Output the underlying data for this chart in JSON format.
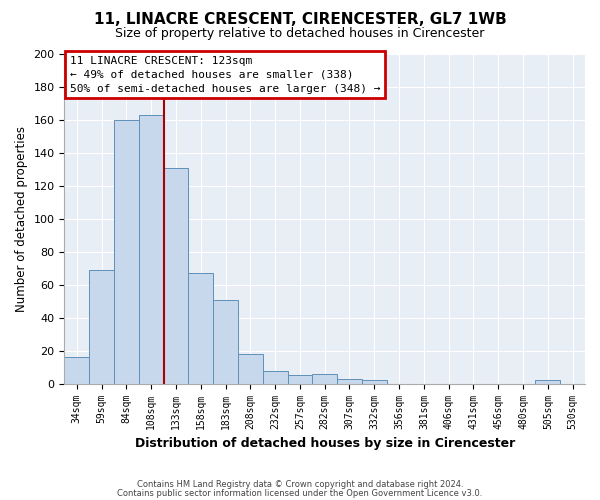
{
  "title": "11, LINACRE CRESCENT, CIRENCESTER, GL7 1WB",
  "subtitle": "Size of property relative to detached houses in Cirencester",
  "xlabel": "Distribution of detached houses by size in Cirencester",
  "ylabel": "Number of detached properties",
  "bar_color": "#c8d8ec",
  "bar_edge_color": "#6090b8",
  "plot_bg_color": "#e8eef6",
  "fig_bg_color": "#ffffff",
  "grid_color": "#ffffff",
  "ylim": [
    0,
    200
  ],
  "yticks": [
    0,
    20,
    40,
    60,
    80,
    100,
    120,
    140,
    160,
    180,
    200
  ],
  "bin_labels": [
    "34sqm",
    "59sqm",
    "84sqm",
    "108sqm",
    "133sqm",
    "158sqm",
    "183sqm",
    "208sqm",
    "232sqm",
    "257sqm",
    "282sqm",
    "307sqm",
    "332sqm",
    "356sqm",
    "381sqm",
    "406sqm",
    "431sqm",
    "456sqm",
    "480sqm",
    "505sqm",
    "530sqm"
  ],
  "bar_heights": [
    16,
    69,
    160,
    163,
    131,
    67,
    51,
    18,
    8,
    5,
    6,
    3,
    2,
    0,
    0,
    0,
    0,
    0,
    0,
    2,
    0
  ],
  "annotation_title": "11 LINACRE CRESCENT: 123sqm",
  "annotation_line1": "← 49% of detached houses are smaller (338)",
  "annotation_line2": "50% of semi-detached houses are larger (348) →",
  "annotation_box_color": "white",
  "annotation_box_edge_color": "#cc0000",
  "red_line_x": 3.5,
  "footer1": "Contains HM Land Registry data © Crown copyright and database right 2024.",
  "footer2": "Contains public sector information licensed under the Open Government Licence v3.0."
}
